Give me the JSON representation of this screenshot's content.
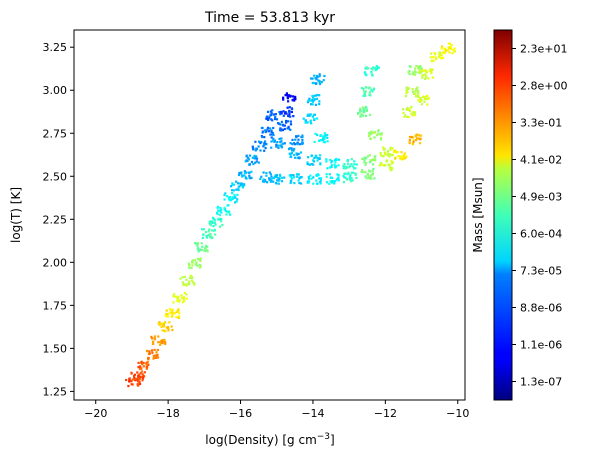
{
  "chart_data": {
    "type": "scatter",
    "title": "Time = 53.813 kyr",
    "xlabel": "log(Density) [g cm",
    "xlabel_sup": "−3",
    "xlabel_close": "]",
    "ylabel": "log(T) [K]",
    "xlim": [
      -20.6,
      -9.8
    ],
    "ylim": [
      1.2,
      3.35
    ],
    "xticks": [
      -20,
      -18,
      -16,
      -14,
      -12,
      -10
    ],
    "xtick_labels": [
      "−20",
      "−18",
      "−16",
      "−14",
      "−12",
      "−10"
    ],
    "yticks": [
      1.25,
      1.5,
      1.75,
      2.0,
      2.25,
      2.5,
      2.75,
      3.0,
      3.25
    ],
    "ytick_labels": [
      "1.25",
      "1.50",
      "1.75",
      "2.00",
      "2.25",
      "2.50",
      "2.75",
      "3.00",
      "3.25"
    ],
    "colormap": "jet",
    "colorbar": {
      "label": "Mass [Msun]",
      "scale": "log",
      "ticks": [
        "1.3e-07",
        "1.1e-06",
        "8.8e-06",
        "7.3e-05",
        "6.0e-04",
        "4.9e-03",
        "4.1e-02",
        "3.3e-01",
        "2.8e+00",
        "2.3e+01"
      ],
      "tick_values": [
        1.3e-07,
        1.1e-06,
        8.8e-06,
        7.3e-05,
        0.0006,
        0.0049,
        0.041,
        0.33,
        2.8,
        23.0
      ]
    },
    "series": [
      {
        "part": "main-branch",
        "points": [
          [
            -19.0,
            1.31,
            0.82
          ],
          [
            -18.85,
            1.35,
            0.8
          ],
          [
            -18.7,
            1.4,
            0.78
          ],
          [
            -18.5,
            1.47,
            0.75
          ],
          [
            -18.3,
            1.55,
            0.72
          ],
          [
            -18.1,
            1.63,
            0.68
          ],
          [
            -17.9,
            1.71,
            0.64
          ],
          [
            -17.7,
            1.8,
            0.6
          ],
          [
            -17.5,
            1.9,
            0.56
          ],
          [
            -17.3,
            2.0,
            0.52
          ],
          [
            -17.1,
            2.09,
            0.48
          ],
          [
            -16.9,
            2.17,
            0.45
          ],
          [
            -16.7,
            2.24,
            0.42
          ],
          [
            -16.5,
            2.31,
            0.39
          ],
          [
            -16.3,
            2.38,
            0.36
          ],
          [
            -16.1,
            2.45,
            0.33
          ],
          [
            -15.9,
            2.52,
            0.3
          ],
          [
            -15.7,
            2.6,
            0.28
          ],
          [
            -15.5,
            2.68,
            0.26
          ],
          [
            -15.3,
            2.76,
            0.24
          ],
          [
            -15.15,
            2.86,
            0.22
          ]
        ]
      },
      {
        "part": "plateau",
        "points": [
          [
            -15.3,
            2.5,
            0.3
          ],
          [
            -15.0,
            2.49,
            0.32
          ],
          [
            -14.5,
            2.49,
            0.34
          ],
          [
            -14.0,
            2.49,
            0.36
          ],
          [
            -13.5,
            2.49,
            0.38
          ],
          [
            -13.0,
            2.5,
            0.42
          ],
          [
            -12.5,
            2.52,
            0.5
          ],
          [
            -12.0,
            2.57,
            0.58
          ],
          [
            -11.6,
            2.63,
            0.64
          ],
          [
            -11.2,
            2.72,
            0.7
          ],
          [
            -15.0,
            2.7,
            0.28
          ],
          [
            -14.5,
            2.64,
            0.3
          ],
          [
            -14.0,
            2.6,
            0.33
          ],
          [
            -13.5,
            2.58,
            0.37
          ],
          [
            -13.0,
            2.58,
            0.42
          ],
          [
            -12.5,
            2.6,
            0.5
          ],
          [
            -12.0,
            2.65,
            0.58
          ]
        ]
      },
      {
        "part": "fingers",
        "points": [
          [
            -14.7,
            2.97,
            0.12
          ],
          [
            -14.75,
            2.88,
            0.18
          ],
          [
            -14.8,
            2.8,
            0.22
          ],
          [
            -14.5,
            2.72,
            0.27
          ],
          [
            -13.9,
            3.07,
            0.3
          ],
          [
            -14.0,
            2.95,
            0.32
          ],
          [
            -14.1,
            2.84,
            0.34
          ],
          [
            -13.8,
            2.73,
            0.37
          ],
          [
            -12.4,
            3.12,
            0.42
          ],
          [
            -12.5,
            3.0,
            0.45
          ],
          [
            -12.6,
            2.88,
            0.48
          ],
          [
            -12.3,
            2.75,
            0.52
          ],
          [
            -11.2,
            3.12,
            0.52
          ],
          [
            -11.3,
            3.0,
            0.55
          ],
          [
            -11.4,
            2.88,
            0.58
          ],
          [
            -10.6,
            3.2,
            0.6
          ],
          [
            -10.3,
            3.25,
            0.63
          ],
          [
            -10.9,
            3.1,
            0.58
          ],
          [
            -11.0,
            2.95,
            0.58
          ]
        ]
      }
    ]
  }
}
